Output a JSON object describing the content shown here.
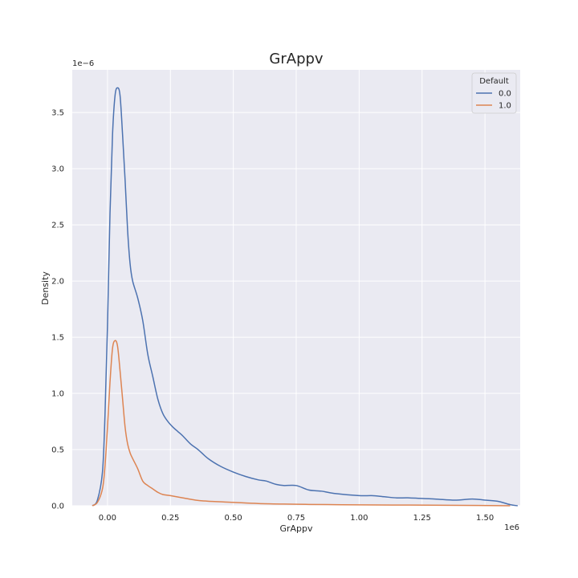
{
  "chart_data": {
    "type": "line",
    "title": "GrAppv",
    "xlabel": "GrAppv",
    "ylabel": "Density",
    "x_offset_label": "1e6",
    "y_offset_label": "1e−6",
    "xlim": [
      -0.14,
      1.64
    ],
    "ylim": [
      0,
      3.88
    ],
    "x_ticks": [
      0.0,
      0.25,
      0.5,
      0.75,
      1.0,
      1.25,
      1.5
    ],
    "x_tick_labels": [
      "0.00",
      "0.25",
      "0.50",
      "0.75",
      "1.00",
      "1.25",
      "1.50"
    ],
    "y_ticks": [
      0.0,
      0.5,
      1.0,
      1.5,
      2.0,
      2.5,
      3.0,
      3.5
    ],
    "y_tick_labels": [
      "0.0",
      "0.5",
      "1.0",
      "1.5",
      "2.0",
      "2.5",
      "3.0",
      "3.5"
    ],
    "grid": true,
    "legend": {
      "title": "Default",
      "placement": "top-right"
    },
    "series": [
      {
        "name": "0.0",
        "color": "#4c72b0",
        "x": [
          -0.06,
          -0.04,
          -0.02,
          -0.01,
          0.0,
          0.01,
          0.02,
          0.03,
          0.04,
          0.05,
          0.06,
          0.07,
          0.08,
          0.09,
          0.1,
          0.12,
          0.14,
          0.16,
          0.18,
          0.2,
          0.22,
          0.24,
          0.26,
          0.28,
          0.3,
          0.33,
          0.36,
          0.4,
          0.45,
          0.5,
          0.55,
          0.6,
          0.63,
          0.67,
          0.7,
          0.75,
          0.8,
          0.85,
          0.9,
          1.0,
          1.05,
          1.1,
          1.15,
          1.2,
          1.3,
          1.38,
          1.45,
          1.5,
          1.55,
          1.6,
          1.63
        ],
        "values": [
          0.0,
          0.05,
          0.3,
          0.8,
          1.6,
          2.6,
          3.3,
          3.65,
          3.72,
          3.65,
          3.3,
          2.9,
          2.45,
          2.15,
          2.0,
          1.85,
          1.65,
          1.35,
          1.15,
          0.95,
          0.82,
          0.75,
          0.7,
          0.66,
          0.62,
          0.55,
          0.5,
          0.42,
          0.35,
          0.3,
          0.26,
          0.23,
          0.22,
          0.19,
          0.18,
          0.18,
          0.14,
          0.13,
          0.11,
          0.09,
          0.09,
          0.08,
          0.07,
          0.07,
          0.06,
          0.05,
          0.06,
          0.05,
          0.04,
          0.01,
          0.0
        ]
      },
      {
        "name": "1.0",
        "color": "#dd8452",
        "x": [
          -0.06,
          -0.04,
          -0.02,
          -0.01,
          0.0,
          0.01,
          0.02,
          0.03,
          0.04,
          0.05,
          0.06,
          0.07,
          0.08,
          0.09,
          0.1,
          0.12,
          0.14,
          0.16,
          0.18,
          0.2,
          0.22,
          0.25,
          0.3,
          0.35,
          0.4,
          0.5,
          0.6,
          0.7,
          0.8,
          0.9,
          1.0,
          1.2,
          1.4,
          1.6
        ],
        "values": [
          0.0,
          0.03,
          0.15,
          0.35,
          0.7,
          1.1,
          1.4,
          1.47,
          1.42,
          1.2,
          0.95,
          0.7,
          0.55,
          0.47,
          0.42,
          0.33,
          0.22,
          0.18,
          0.15,
          0.12,
          0.1,
          0.09,
          0.07,
          0.05,
          0.04,
          0.03,
          0.02,
          0.015,
          0.012,
          0.01,
          0.008,
          0.006,
          0.004,
          0.0
        ]
      }
    ]
  }
}
